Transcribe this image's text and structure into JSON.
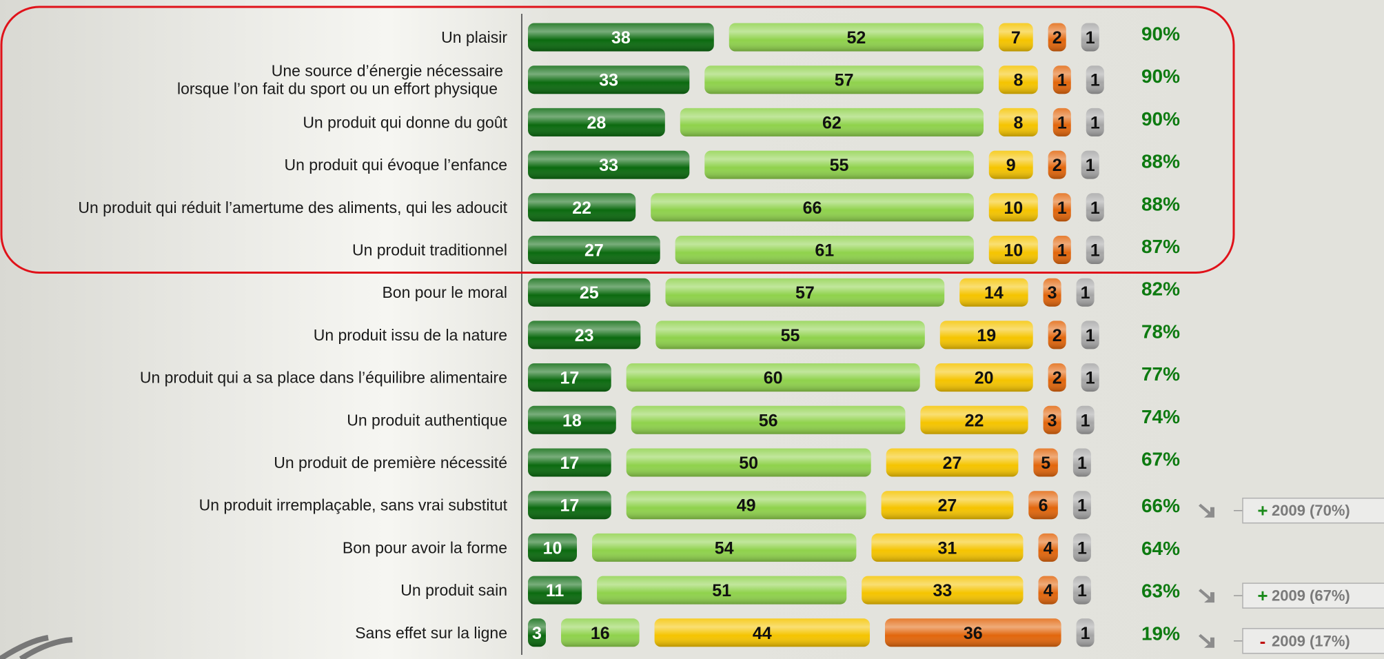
{
  "chart_data": {
    "type": "bar",
    "categories": [
      "Un plaisir",
      [
        "Une source d’énergie nécessaire",
        "lorsque l’on fait du sport ou un effort physique"
      ],
      "Un produit qui donne du goût",
      "Un produit qui évoque l’enfance",
      "Un produit qui réduit l’amertume des aliments, qui les adoucit",
      "Un produit traditionnel",
      "Bon pour le moral",
      "Un produit issu de la nature",
      "Un produit qui a sa place dans l’équilibre alimentaire",
      "Un produit authentique",
      "Un produit de première nécessité",
      "Un produit irremplaçable, sans vrai substitut",
      "Bon pour avoir la forme",
      "Un produit sain",
      "Sans effet sur la ligne"
    ],
    "series": [
      {
        "color": "#0b6a0f",
        "values": [
          38,
          33,
          28,
          33,
          22,
          27,
          25,
          23,
          17,
          18,
          17,
          17,
          10,
          11,
          3
        ]
      },
      {
        "color": "#8fd24c",
        "values": [
          52,
          57,
          62,
          55,
          66,
          61,
          57,
          55,
          60,
          56,
          50,
          49,
          54,
          51,
          16
        ]
      },
      {
        "color": "#f5c400",
        "values": [
          7,
          8,
          8,
          9,
          10,
          10,
          14,
          19,
          20,
          22,
          27,
          27,
          31,
          33,
          44
        ]
      },
      {
        "color": "#e2660c",
        "values": [
          2,
          1,
          1,
          2,
          1,
          1,
          3,
          2,
          2,
          3,
          5,
          6,
          4,
          4,
          36
        ]
      },
      {
        "color": "#a6a6a6",
        "values": [
          1,
          1,
          1,
          1,
          1,
          1,
          1,
          1,
          1,
          1,
          1,
          1,
          1,
          1,
          1
        ]
      }
    ],
    "totals": [
      90,
      90,
      90,
      88,
      88,
      87,
      82,
      78,
      77,
      74,
      67,
      66,
      64,
      63,
      19
    ],
    "total_labels": [
      "90%",
      "90%",
      "90%",
      "88%",
      "88%",
      "87%",
      "82%",
      "78%",
      "77%",
      "74%",
      "67%",
      "66%",
      "64%",
      "63%",
      "19%"
    ],
    "total_color": "#0d7a10",
    "comparisons": [
      null,
      null,
      null,
      null,
      null,
      null,
      null,
      null,
      null,
      null,
      null,
      {
        "sign": "+",
        "text": "2009 (70%)"
      },
      null,
      {
        "sign": "+",
        "text": "2009 (67%)"
      },
      {
        "sign": "-",
        "text": "2009 (17%)"
      }
    ],
    "highlight": {
      "from": 0,
      "to": 5,
      "color": "#e0121a"
    }
  }
}
